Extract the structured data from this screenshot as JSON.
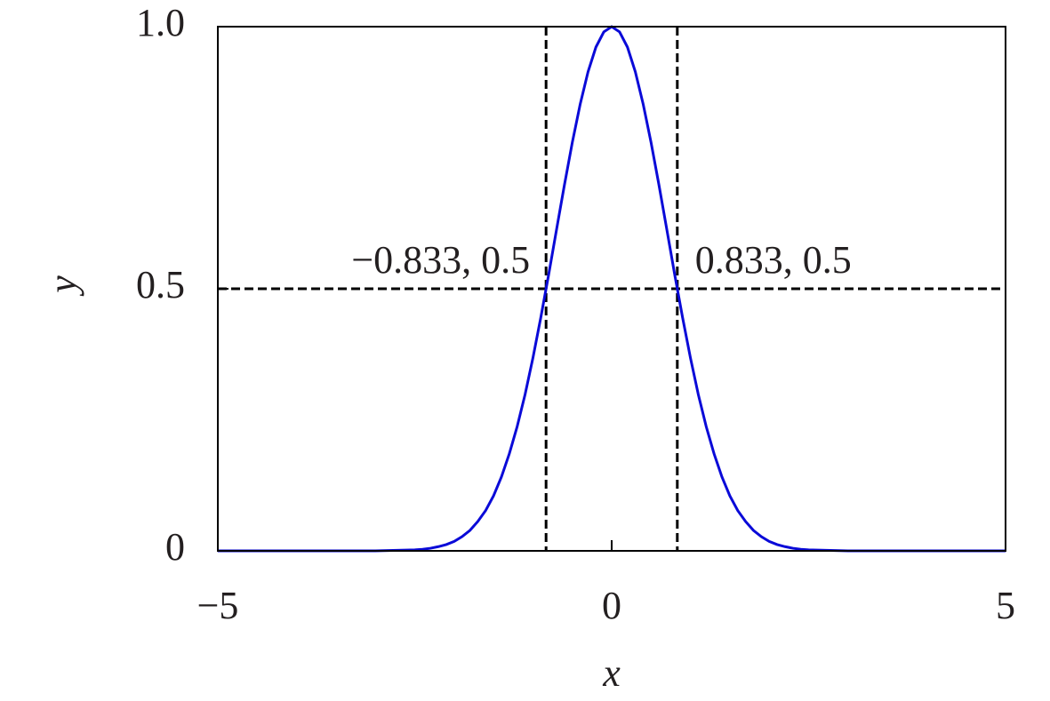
{
  "chart_data": {
    "type": "line",
    "x_label": "x",
    "y_label": "y",
    "xlim": [
      -5,
      5
    ],
    "ylim": [
      0,
      1
    ],
    "xticks": [
      {
        "value": -5,
        "label": "−5"
      },
      0,
      5
    ],
    "yticks": [
      0,
      0.5,
      {
        "value": 1,
        "label": "1.0"
      }
    ],
    "x": [
      -5,
      -3,
      -2.5,
      -2.4,
      -2.3,
      -2.2,
      -2.1,
      -2.0,
      -1.9,
      -1.8,
      -1.7,
      -1.6,
      -1.5,
      -1.4,
      -1.3,
      -1.2,
      -1.1,
      -1.0,
      -0.9,
      -0.8,
      -0.7,
      -0.6,
      -0.5,
      -0.4,
      -0.3,
      -0.2,
      -0.1,
      0,
      0.1,
      0.2,
      0.3,
      0.4,
      0.5,
      0.6,
      0.7,
      0.8,
      0.9,
      1.0,
      1.1,
      1.2,
      1.3,
      1.4,
      1.5,
      1.6,
      1.7,
      1.8,
      1.9,
      2.0,
      2.1,
      2.2,
      2.3,
      2.4,
      2.5,
      3,
      5
    ],
    "series": [
      {
        "color": "#0a0ad8",
        "values": [
          0,
          0,
          0.002,
          0.003,
          0.005,
          0.008,
          0.012,
          0.018,
          0.027,
          0.039,
          0.056,
          0.077,
          0.105,
          0.141,
          0.185,
          0.237,
          0.298,
          0.368,
          0.445,
          0.527,
          0.613,
          0.698,
          0.779,
          0.852,
          0.914,
          0.961,
          0.99,
          1,
          0.99,
          0.961,
          0.914,
          0.852,
          0.779,
          0.698,
          0.613,
          0.527,
          0.445,
          0.368,
          0.298,
          0.237,
          0.185,
          0.141,
          0.105,
          0.077,
          0.056,
          0.039,
          0.027,
          0.018,
          0.012,
          0.008,
          0.005,
          0.003,
          0.002,
          0,
          0
        ]
      }
    ],
    "hline": 0.5,
    "annotations": [
      {
        "text": "−0.833, 0.5",
        "x": -0.833,
        "y": 0.5
      },
      {
        "text": "0.833, 0.5",
        "x": 0.833,
        "y": 0.5
      }
    ]
  }
}
